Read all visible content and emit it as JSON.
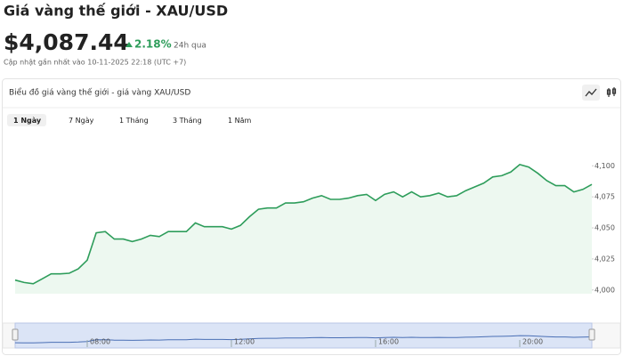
{
  "header": {
    "title": "Giá vàng thế giới - XAU/USD",
    "price": "$4,087.44",
    "change": "2.18%",
    "change_period": "24h qua",
    "updated": "Cập nhật gần nhất vào 10-11-2025 22:18 (UTC +7)"
  },
  "panel": {
    "title": "Biểu đồ giá vàng thế giới - giá vàng XAU/USD",
    "tabs": [
      "1 Ngày",
      "7 Ngày",
      "1 Tháng",
      "3 Tháng",
      "1 Năm"
    ]
  },
  "chart_data": {
    "type": "area",
    "color": "#2e9d5b",
    "fill": "#edf8f0",
    "x": [
      6,
      6.25,
      6.5,
      6.75,
      7,
      7.25,
      7.5,
      7.75,
      8,
      8.25,
      8.5,
      8.75,
      9,
      9.25,
      9.5,
      9.75,
      10,
      10.25,
      10.5,
      10.75,
      11,
      11.25,
      11.5,
      11.75,
      12,
      12.25,
      12.5,
      12.75,
      13,
      13.25,
      13.5,
      13.75,
      14,
      14.25,
      14.5,
      14.75,
      15,
      15.25,
      15.5,
      15.75,
      16,
      16.25,
      16.5,
      16.75,
      17,
      17.25,
      17.5,
      17.75,
      18,
      18.25,
      18.5,
      18.75,
      19,
      19.25,
      19.5,
      19.75,
      20,
      20.25,
      20.5,
      20.75,
      21,
      21.25,
      21.5,
      21.75,
      22
    ],
    "values": [
      4008,
      4006,
      4005,
      4009,
      4013,
      4013,
      4013.5,
      4017,
      4024,
      4046,
      4047,
      4041,
      4041,
      4039,
      4041,
      4044,
      4043,
      4047,
      4047,
      4047,
      4054,
      4051,
      4051,
      4051,
      4049,
      4052,
      4059,
      4065,
      4066,
      4066,
      4070,
      4070,
      4071,
      4074,
      4076,
      4073,
      4073,
      4074,
      4076,
      4077,
      4072,
      4077,
      4079,
      4075,
      4079,
      4075,
      4076,
      4078,
      4075,
      4076,
      4080,
      4083,
      4086,
      4091,
      4092,
      4095,
      4101,
      4099,
      4094,
      4088,
      4084,
      4084,
      4079,
      4081,
      4085
    ],
    "xlim": [
      6,
      22
    ],
    "ylim": [
      3997,
      4126
    ],
    "yticks": [
      {
        "value": 4000,
        "label": "4,000"
      },
      {
        "value": 4025,
        "label": "4,025"
      },
      {
        "value": 4050,
        "label": "4,050"
      },
      {
        "value": 4075,
        "label": "4,075"
      },
      {
        "value": 4100,
        "label": "4,100"
      }
    ],
    "xticks": [
      {
        "value": 8,
        "label": "08:00"
      },
      {
        "value": 12,
        "label": "12:00"
      },
      {
        "value": 16,
        "label": "16:00"
      },
      {
        "value": 20,
        "label": "20:00"
      }
    ]
  }
}
